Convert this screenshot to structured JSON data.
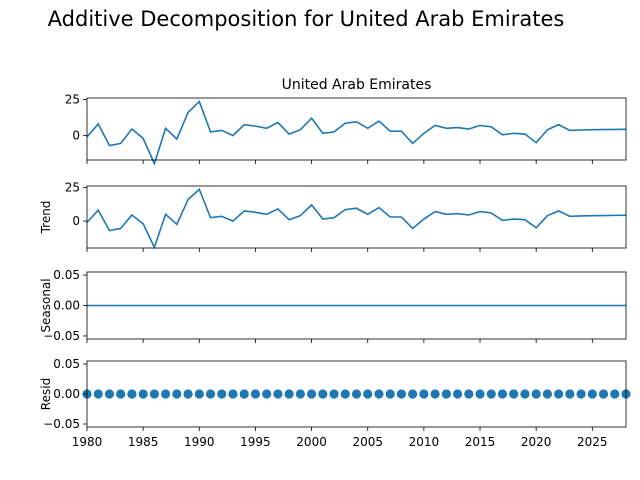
{
  "figure": {
    "suptitle": "Additive Decomposition for United Arab Emirates",
    "panel_title": "United Arab Emirates"
  },
  "chart_data": [
    {
      "type": "line",
      "name": "observed",
      "title": "United Arab Emirates",
      "ylabel": "",
      "xlim": [
        1980,
        2028
      ],
      "ylim": [
        -17,
        26
      ],
      "yticks": [
        0,
        25
      ],
      "ytick_labels": [
        "0",
        "25"
      ],
      "color": "#1f77b4",
      "x": [
        1980,
        1981,
        1982,
        1983,
        1984,
        1985,
        1986,
        1987,
        1988,
        1989,
        1990,
        1991,
        1992,
        1993,
        1994,
        1995,
        1996,
        1997,
        1998,
        1999,
        2000,
        2001,
        2002,
        2003,
        2004,
        2005,
        2006,
        2007,
        2008,
        2009,
        2010,
        2011,
        2012,
        2013,
        2014,
        2015,
        2016,
        2017,
        2018,
        2019,
        2020,
        2021,
        2022,
        2023,
        2024,
        2025,
        2026,
        2027,
        2028
      ],
      "values": [
        -1,
        8,
        -7,
        -5.5,
        4.5,
        -2,
        -19.5,
        5,
        -2.5,
        16,
        23.5,
        2.5,
        3.5,
        0,
        7.5,
        6.5,
        5,
        9,
        1,
        4,
        12,
        1.5,
        2.5,
        8.5,
        9.5,
        5,
        10,
        3,
        3,
        -5.5,
        1.5,
        7,
        5,
        5.5,
        4.5,
        7,
        6,
        0.5,
        1.5,
        1,
        -5,
        4,
        7.5,
        3.5,
        3.8,
        4,
        4.1,
        4.2,
        4.3
      ]
    },
    {
      "type": "line",
      "name": "trend",
      "title": "",
      "ylabel": "Trend",
      "xlim": [
        1980,
        2028
      ],
      "ylim": [
        -20,
        26
      ],
      "yticks": [
        0,
        25
      ],
      "ytick_labels": [
        "0",
        "25"
      ],
      "color": "#1f77b4",
      "x": [
        1980,
        1981,
        1982,
        1983,
        1984,
        1985,
        1986,
        1987,
        1988,
        1989,
        1990,
        1991,
        1992,
        1993,
        1994,
        1995,
        1996,
        1997,
        1998,
        1999,
        2000,
        2001,
        2002,
        2003,
        2004,
        2005,
        2006,
        2007,
        2008,
        2009,
        2010,
        2011,
        2012,
        2013,
        2014,
        2015,
        2016,
        2017,
        2018,
        2019,
        2020,
        2021,
        2022,
        2023,
        2024,
        2025,
        2026,
        2027,
        2028
      ],
      "values": [
        -1,
        8,
        -7,
        -5.5,
        4.5,
        -2,
        -19.5,
        5,
        -2.5,
        16,
        23.5,
        2.5,
        3.5,
        0,
        7.5,
        6.5,
        5,
        9,
        1,
        4,
        12,
        1.5,
        2.5,
        8.5,
        9.5,
        5,
        10,
        3,
        3,
        -5.5,
        1.5,
        7,
        5,
        5.5,
        4.5,
        7,
        6,
        0.5,
        1.5,
        1,
        -5,
        4,
        7.5,
        3.5,
        3.8,
        4,
        4.1,
        4.2,
        4.3
      ]
    },
    {
      "type": "line",
      "name": "seasonal",
      "title": "",
      "ylabel": "Seasonal",
      "xlim": [
        1980,
        2028
      ],
      "ylim": [
        -0.055,
        0.055
      ],
      "yticks": [
        -0.05,
        0,
        0.05
      ],
      "ytick_labels": [
        "−0.05",
        "0.00",
        "0.05"
      ],
      "color": "#1f77b4",
      "x": [
        1980,
        2028
      ],
      "values": [
        0,
        0
      ]
    },
    {
      "type": "scatter",
      "name": "resid",
      "title": "",
      "ylabel": "Resid",
      "xlim": [
        1980,
        2028
      ],
      "ylim": [
        -0.055,
        0.055
      ],
      "yticks": [
        -0.05,
        0,
        0.05
      ],
      "ytick_labels": [
        "−0.05",
        "0.00",
        "0.05"
      ],
      "xticks": [
        1980,
        1985,
        1990,
        1995,
        2000,
        2005,
        2010,
        2015,
        2020,
        2025
      ],
      "xtick_labels": [
        "1980",
        "1985",
        "1990",
        "1995",
        "2000",
        "2005",
        "2010",
        "2015",
        "2020",
        "2025"
      ],
      "color": "#1f77b4",
      "x": [
        1980,
        1981,
        1982,
        1983,
        1984,
        1985,
        1986,
        1987,
        1988,
        1989,
        1990,
        1991,
        1992,
        1993,
        1994,
        1995,
        1996,
        1997,
        1998,
        1999,
        2000,
        2001,
        2002,
        2003,
        2004,
        2005,
        2006,
        2007,
        2008,
        2009,
        2010,
        2011,
        2012,
        2013,
        2014,
        2015,
        2016,
        2017,
        2018,
        2019,
        2020,
        2021,
        2022,
        2023,
        2024,
        2025,
        2026,
        2027,
        2028
      ],
      "values": [
        0,
        0,
        0,
        0,
        0,
        0,
        0,
        0,
        0,
        0,
        0,
        0,
        0,
        0,
        0,
        0,
        0,
        0,
        0,
        0,
        0,
        0,
        0,
        0,
        0,
        0,
        0,
        0,
        0,
        0,
        0,
        0,
        0,
        0,
        0,
        0,
        0,
        0,
        0,
        0,
        0,
        0,
        0,
        0,
        0,
        0,
        0,
        0,
        0
      ]
    }
  ]
}
